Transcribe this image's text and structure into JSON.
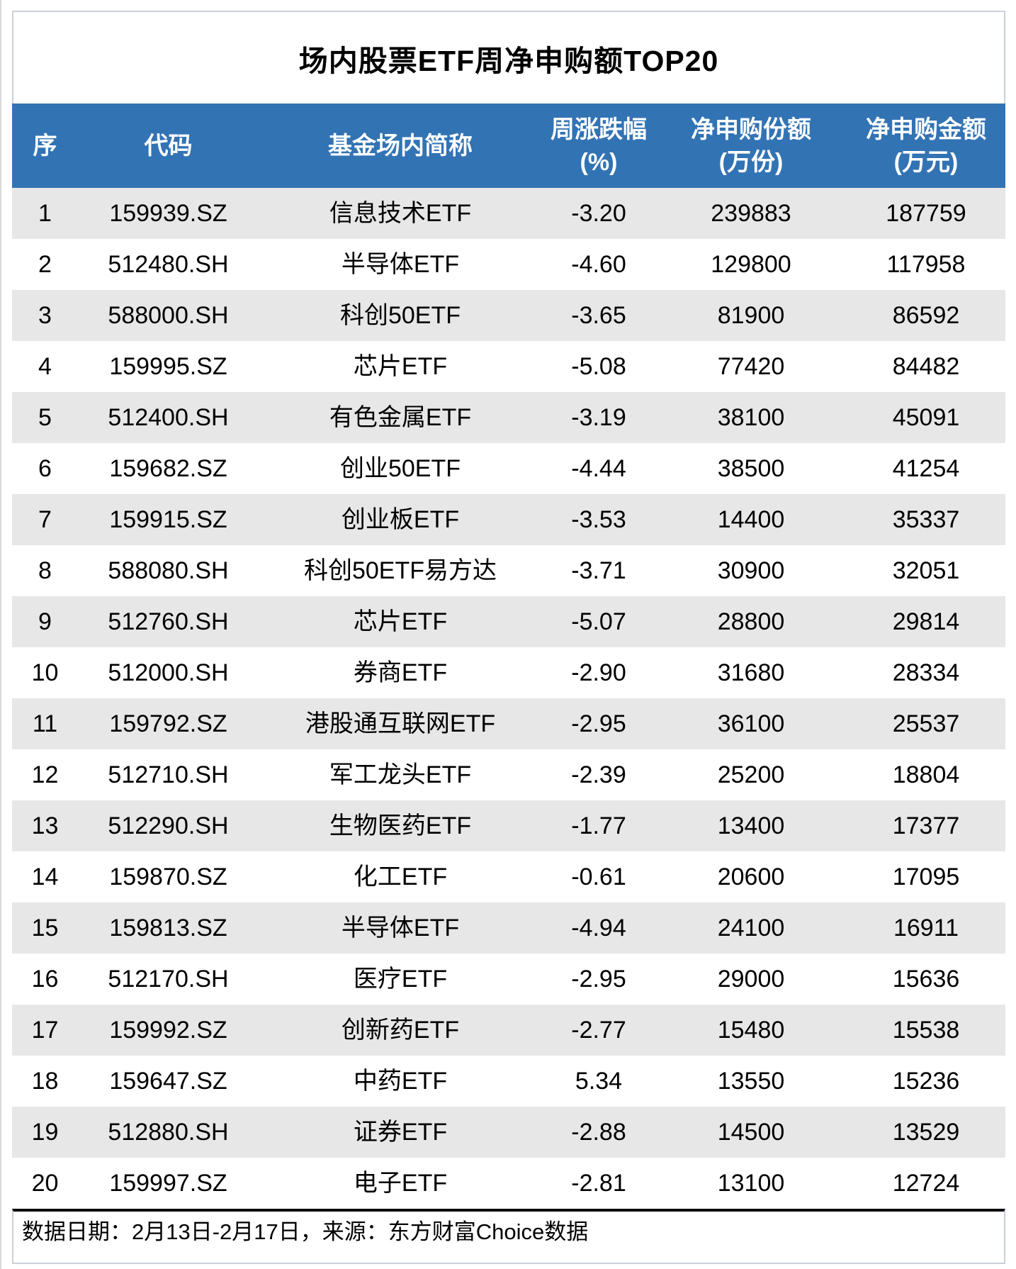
{
  "chart_data": {
    "type": "table",
    "title": "场内股票ETF周净申购额TOP20",
    "columns": [
      {
        "id": "seq",
        "line1": "序",
        "line2": ""
      },
      {
        "id": "code",
        "line1": "代码",
        "line2": ""
      },
      {
        "id": "fund_name",
        "line1": "基金场内简称",
        "line2": ""
      },
      {
        "id": "weekly_change",
        "line1": "周涨跌幅",
        "line2": "(%)"
      },
      {
        "id": "net_sub_shares",
        "line1": "净申购份额",
        "line2": "(万份)"
      },
      {
        "id": "net_sub_amount",
        "line1": "净申购金额",
        "line2": "(万元)"
      }
    ],
    "rows": [
      [
        "1",
        "159939.SZ",
        "信息技术ETF",
        "-3.20",
        "239883",
        "187759"
      ],
      [
        "2",
        "512480.SH",
        "半导体ETF",
        "-4.60",
        "129800",
        "117958"
      ],
      [
        "3",
        "588000.SH",
        "科创50ETF",
        "-3.65",
        "81900",
        "86592"
      ],
      [
        "4",
        "159995.SZ",
        "芯片ETF",
        "-5.08",
        "77420",
        "84482"
      ],
      [
        "5",
        "512400.SH",
        "有色金属ETF",
        "-3.19",
        "38100",
        "45091"
      ],
      [
        "6",
        "159682.SZ",
        "创业50ETF",
        "-4.44",
        "38500",
        "41254"
      ],
      [
        "7",
        "159915.SZ",
        "创业板ETF",
        "-3.53",
        "14400",
        "35337"
      ],
      [
        "8",
        "588080.SH",
        "科创50ETF易方达",
        "-3.71",
        "30900",
        "32051"
      ],
      [
        "9",
        "512760.SH",
        "芯片ETF",
        "-5.07",
        "28800",
        "29814"
      ],
      [
        "10",
        "512000.SH",
        "券商ETF",
        "-2.90",
        "31680",
        "28334"
      ],
      [
        "11",
        "159792.SZ",
        "港股通互联网ETF",
        "-2.95",
        "36100",
        "25537"
      ],
      [
        "12",
        "512710.SH",
        "军工龙头ETF",
        "-2.39",
        "25200",
        "18804"
      ],
      [
        "13",
        "512290.SH",
        "生物医药ETF",
        "-1.77",
        "13400",
        "17377"
      ],
      [
        "14",
        "159870.SZ",
        "化工ETF",
        "-0.61",
        "20600",
        "17095"
      ],
      [
        "15",
        "159813.SZ",
        "半导体ETF",
        "-4.94",
        "24100",
        "16911"
      ],
      [
        "16",
        "512170.SH",
        "医疗ETF",
        "-2.95",
        "29000",
        "15636"
      ],
      [
        "17",
        "159992.SZ",
        "创新药ETF",
        "-2.77",
        "15480",
        "15538"
      ],
      [
        "18",
        "159647.SZ",
        "中药ETF",
        "5.34",
        "13550",
        "15236"
      ],
      [
        "19",
        "512880.SH",
        "证券ETF",
        "-2.88",
        "14500",
        "13529"
      ],
      [
        "20",
        "159997.SZ",
        "电子ETF",
        "-2.81",
        "13100",
        "12724"
      ]
    ],
    "footer": "数据日期：2月13日-2月17日，来源：东方财富Choice数据",
    "layout": {
      "grid": "off",
      "striped_rows": true,
      "stripe_start": "row1"
    }
  },
  "colors": {
    "header_bg": "#3273B4",
    "header_text": "#FFFFFF",
    "row_alt_bg": "#E7E7E7",
    "row_bg": "#FFFFFF",
    "border_light": "#CBD0DB",
    "footer_top_border": "#0B0B0B",
    "text": "#000000"
  }
}
